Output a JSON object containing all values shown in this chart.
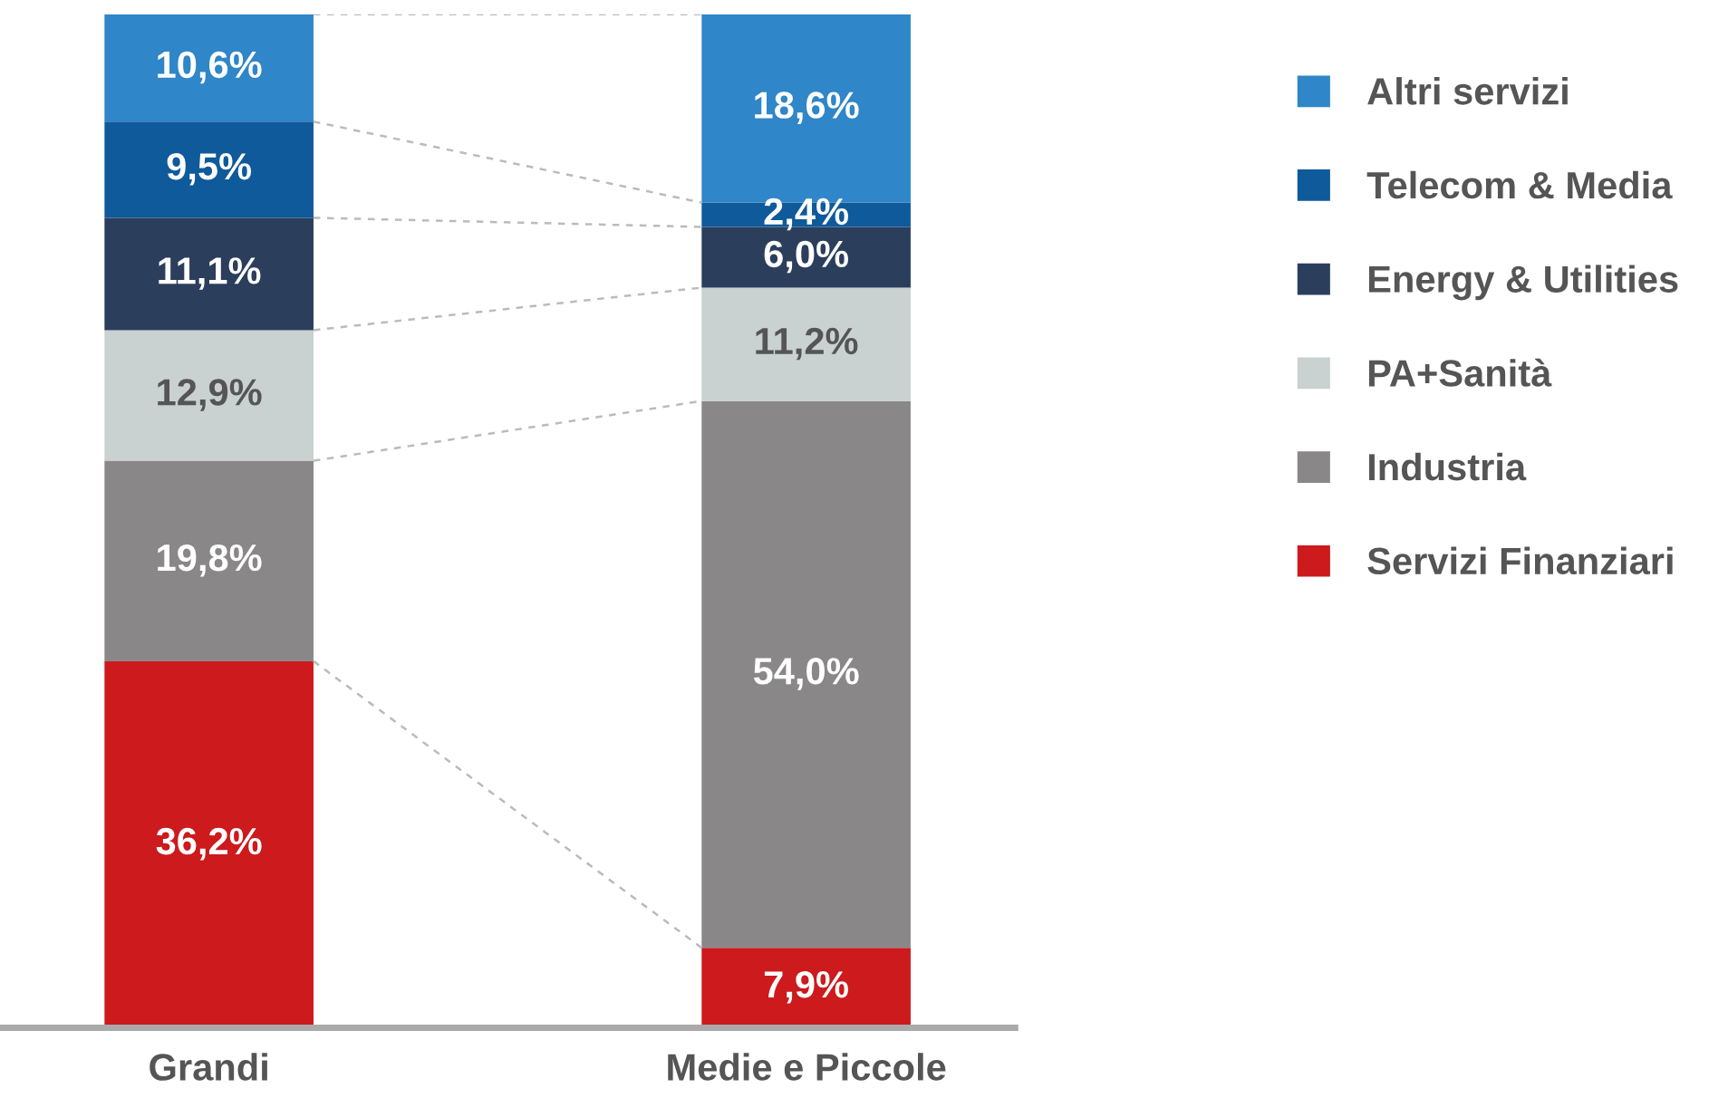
{
  "chart_data": {
    "type": "bar",
    "stacked": true,
    "categories": [
      "Grandi",
      "Medie e Piccole"
    ],
    "series": [
      {
        "name": "Servizi Finanziari",
        "color": "#cc1a1d",
        "values": [
          36.2,
          7.9
        ],
        "value_labels": [
          "36,2%",
          "7,9%"
        ]
      },
      {
        "name": "Industria",
        "color": "#8a8789",
        "values": [
          19.8,
          54.0
        ],
        "value_labels": [
          "19,8%",
          "54,0%"
        ]
      },
      {
        "name": "PA+Sanità",
        "color": "#c9d1d1",
        "values": [
          12.9,
          11.2
        ],
        "value_labels": [
          "12,9%",
          "11,2%"
        ]
      },
      {
        "name": "Energy & Utilities",
        "color": "#2b3f5c",
        "values": [
          11.1,
          6.0
        ],
        "value_labels": [
          "11,1%",
          "6,0%"
        ]
      },
      {
        "name": "Telecom & Media",
        "color": "#0f5a9a",
        "values": [
          9.5,
          2.4
        ],
        "value_labels": [
          "9,5%",
          "2,4%"
        ]
      },
      {
        "name": "Altri servizi",
        "color": "#2f86c8",
        "values": [
          10.6,
          18.6
        ],
        "value_labels": [
          "10,6%",
          "18,6%"
        ]
      }
    ],
    "legend": "right"
  }
}
